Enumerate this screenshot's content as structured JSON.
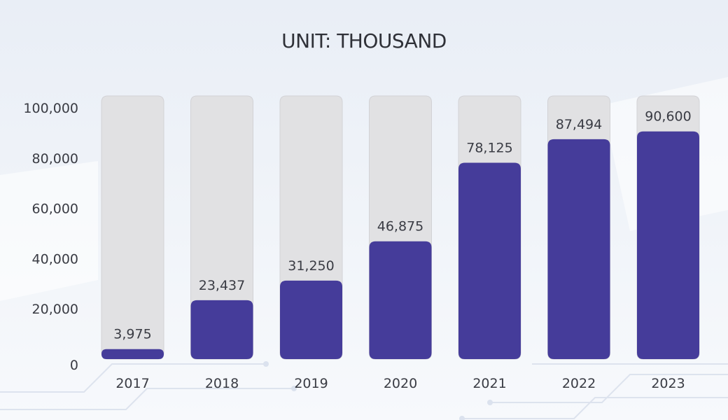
{
  "colors": {
    "bar_fill": "#453c9a",
    "track_fill": "#e1e1e3",
    "text": "#3a3c44"
  },
  "chart_data": {
    "type": "bar",
    "title": "UNIT: THOUSAND",
    "xlabel": "",
    "ylabel": "",
    "categories": [
      "2017",
      "2018",
      "2019",
      "2020",
      "2021",
      "2022",
      "2023"
    ],
    "values": [
      3975,
      23437,
      31250,
      46875,
      78125,
      87494,
      90600
    ],
    "data_labels": [
      "3,975",
      "23,437",
      "31,250",
      "46,875",
      "78,125",
      "87,494",
      "90,600"
    ],
    "ylim": [
      0,
      100000
    ],
    "yticks": [
      0,
      20000,
      40000,
      60000,
      80000,
      100000
    ],
    "ytick_labels": [
      "0",
      "20,000",
      "40,000",
      "60,000",
      "80,000",
      "100,000"
    ],
    "grid": false,
    "legend": "none"
  }
}
